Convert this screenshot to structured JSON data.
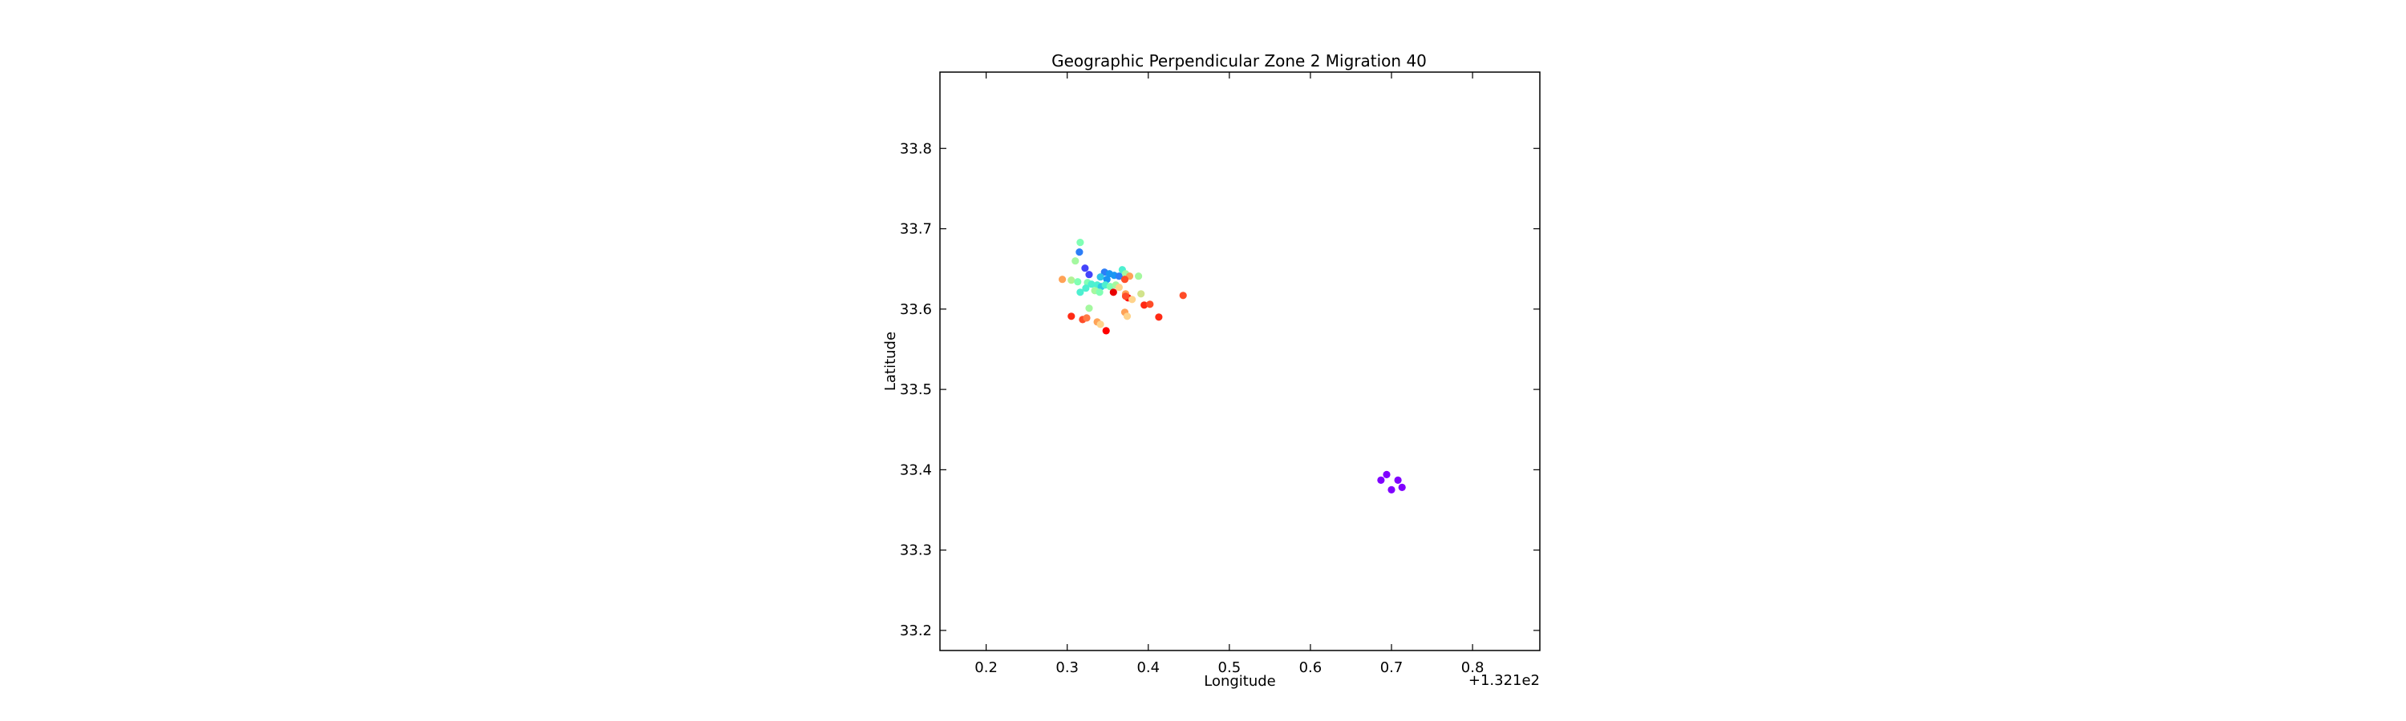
{
  "chart_data": {
    "type": "scatter",
    "title": "Geographic Perpendicular Zone 2 Migration 40",
    "xlabel": "Longitude",
    "ylabel": "Latitude",
    "x_offset_label": "+1.321e2",
    "xlim": [
      0.143,
      0.883
    ],
    "ylim": [
      33.175,
      33.895
    ],
    "xticks": [
      0.2,
      0.3,
      0.4,
      0.5,
      0.6,
      0.7,
      0.8
    ],
    "xtick_labels": [
      "0.2",
      "0.3",
      "0.4",
      "0.5",
      "0.6",
      "0.7",
      "0.8"
    ],
    "yticks": [
      33.2,
      33.3,
      33.4,
      33.5,
      33.6,
      33.7,
      33.8
    ],
    "ytick_labels": [
      "33.2",
      "33.3",
      "33.4",
      "33.5",
      "33.6",
      "33.7",
      "33.8"
    ],
    "grid": false,
    "colormap": "rainbow",
    "points": [
      {
        "x": 0.316,
        "y": 33.683,
        "c": "#80ffb4"
      },
      {
        "x": 0.315,
        "y": 33.671,
        "c": "#2c7ef7"
      },
      {
        "x": 0.31,
        "y": 33.66,
        "c": "#a4f89f"
      },
      {
        "x": 0.322,
        "y": 33.651,
        "c": "#4444fb"
      },
      {
        "x": 0.327,
        "y": 33.643,
        "c": "#4444fb"
      },
      {
        "x": 0.346,
        "y": 33.646,
        "c": "#2c7ef7"
      },
      {
        "x": 0.352,
        "y": 33.644,
        "c": "#1996f3"
      },
      {
        "x": 0.358,
        "y": 33.642,
        "c": "#1996f3"
      },
      {
        "x": 0.364,
        "y": 33.641,
        "c": "#2c7ef7"
      },
      {
        "x": 0.341,
        "y": 33.64,
        "c": "#30c6e8"
      },
      {
        "x": 0.349,
        "y": 33.637,
        "c": "#1996f3"
      },
      {
        "x": 0.368,
        "y": 33.649,
        "c": "#4df0d0"
      },
      {
        "x": 0.372,
        "y": 33.644,
        "c": "#a4f89f"
      },
      {
        "x": 0.377,
        "y": 33.641,
        "c": "#ffa256"
      },
      {
        "x": 0.371,
        "y": 33.637,
        "c": "#ff4c28"
      },
      {
        "x": 0.388,
        "y": 33.641,
        "c": "#a4f89f"
      },
      {
        "x": 0.294,
        "y": 33.637,
        "c": "#ffa256"
      },
      {
        "x": 0.305,
        "y": 33.636,
        "c": "#b2f296"
      },
      {
        "x": 0.313,
        "y": 33.634,
        "c": "#80ffb4"
      },
      {
        "x": 0.325,
        "y": 33.633,
        "c": "#80ffb4"
      },
      {
        "x": 0.33,
        "y": 33.631,
        "c": "#4df0d0"
      },
      {
        "x": 0.337,
        "y": 33.63,
        "c": "#4df0d0"
      },
      {
        "x": 0.342,
        "y": 33.628,
        "c": "#30c6e8"
      },
      {
        "x": 0.347,
        "y": 33.63,
        "c": "#4df0d0"
      },
      {
        "x": 0.353,
        "y": 33.628,
        "c": "#80ffb4"
      },
      {
        "x": 0.36,
        "y": 33.63,
        "c": "#a4f89f"
      },
      {
        "x": 0.364,
        "y": 33.627,
        "c": "#ffd38b"
      },
      {
        "x": 0.323,
        "y": 33.626,
        "c": "#4df0d0"
      },
      {
        "x": 0.316,
        "y": 33.621,
        "c": "#4df0d0"
      },
      {
        "x": 0.334,
        "y": 33.623,
        "c": "#a4f89f"
      },
      {
        "x": 0.34,
        "y": 33.621,
        "c": "#80ffb4"
      },
      {
        "x": 0.357,
        "y": 33.621,
        "c": "#e80000"
      },
      {
        "x": 0.372,
        "y": 33.619,
        "c": "#ffa256"
      },
      {
        "x": 0.375,
        "y": 33.614,
        "c": "#ff0000"
      },
      {
        "x": 0.372,
        "y": 33.616,
        "c": "#ff4c28"
      },
      {
        "x": 0.391,
        "y": 33.619,
        "c": "#d2e38c"
      },
      {
        "x": 0.443,
        "y": 33.617,
        "c": "#ff4c28"
      },
      {
        "x": 0.38,
        "y": 33.612,
        "c": "#ffd38b"
      },
      {
        "x": 0.395,
        "y": 33.605,
        "c": "#ff2a14"
      },
      {
        "x": 0.402,
        "y": 33.606,
        "c": "#ff4c28"
      },
      {
        "x": 0.413,
        "y": 33.59,
        "c": "#ff2a14"
      },
      {
        "x": 0.327,
        "y": 33.601,
        "c": "#a4f89f"
      },
      {
        "x": 0.371,
        "y": 33.596,
        "c": "#ffa256"
      },
      {
        "x": 0.374,
        "y": 33.591,
        "c": "#ffd38b"
      },
      {
        "x": 0.305,
        "y": 33.591,
        "c": "#ff2a14"
      },
      {
        "x": 0.319,
        "y": 33.587,
        "c": "#ff4c28"
      },
      {
        "x": 0.324,
        "y": 33.589,
        "c": "#ff7a45"
      },
      {
        "x": 0.337,
        "y": 33.584,
        "c": "#ffa256"
      },
      {
        "x": 0.341,
        "y": 33.581,
        "c": "#ffd38b"
      },
      {
        "x": 0.348,
        "y": 33.573,
        "c": "#ff0000"
      },
      {
        "x": 0.694,
        "y": 33.394,
        "c": "#8000ff"
      },
      {
        "x": 0.687,
        "y": 33.387,
        "c": "#8000ff"
      },
      {
        "x": 0.708,
        "y": 33.387,
        "c": "#8000ff"
      },
      {
        "x": 0.713,
        "y": 33.378,
        "c": "#8000ff"
      },
      {
        "x": 0.7,
        "y": 33.375,
        "c": "#8000ff"
      }
    ]
  }
}
